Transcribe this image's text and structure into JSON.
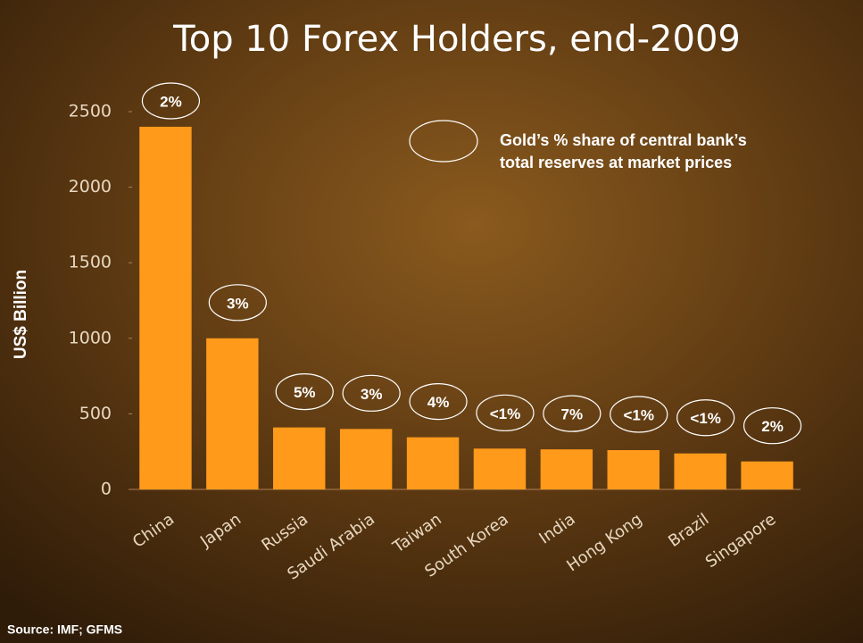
{
  "chart_data": {
    "type": "bar",
    "title": "Top 10 Forex Holders, end-2009",
    "y_label": "US$ Billion",
    "categories": [
      "China",
      "Japan",
      "Russia",
      "Saudi Arabia",
      "Taiwan",
      "South Korea",
      "India",
      "Hong Kong",
      "Brazil",
      "Singapore"
    ],
    "values": [
      2400,
      1000,
      410,
      400,
      345,
      270,
      265,
      260,
      238,
      185
    ],
    "gold_share_labels": [
      "2%",
      "3%",
      "5%",
      "3%",
      "4%",
      "<1%",
      "7%",
      "<1%",
      "<1%",
      "2%"
    ],
    "legend_text": [
      "Gold’s % share of central bank’s",
      "total reserves at market prices"
    ],
    "source": "Source: IMF; GFMS",
    "color": "#ff9a1a",
    "ylim": [
      0,
      2500
    ],
    "yticks": [
      0,
      500,
      1000,
      1500,
      2000,
      2500
    ],
    "grid": false
  }
}
